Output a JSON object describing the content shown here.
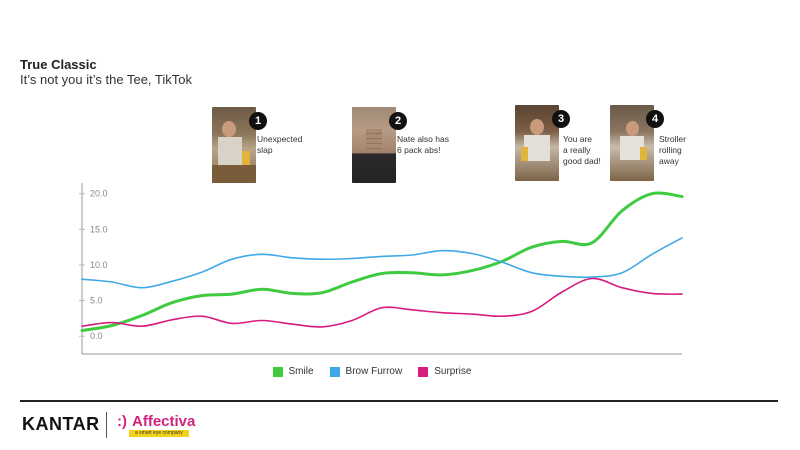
{
  "header": {
    "title": "True Classic",
    "subtitle": "It’s not you it’s the Tee, TikTok"
  },
  "moments": [
    {
      "number": "1",
      "caption_lines": [
        "Unexpected",
        "slap"
      ]
    },
    {
      "number": "2",
      "caption_lines": [
        "Nate also has",
        "6 pack abs!"
      ]
    },
    {
      "number": "3",
      "caption_lines": [
        "You are",
        "a really",
        "good dad!"
      ]
    },
    {
      "number": "4",
      "caption_lines": [
        "Stroller",
        "rolling",
        "away"
      ]
    }
  ],
  "footer": {
    "brand": "KANTAR",
    "partner_face": ":)",
    "partner": "Affectiva",
    "partner_tagline": "a smart eye company"
  },
  "chart_data": {
    "type": "line",
    "title": "",
    "xlabel": "",
    "ylabel": "",
    "ylim": [
      -2.5,
      21.5
    ],
    "yticks": [
      "0.0",
      "5.0",
      "10.0",
      "15.0",
      "20.0"
    ],
    "legend_position": "bottom",
    "grid": false,
    "x": [
      0,
      5,
      10,
      15,
      20,
      25,
      30,
      35,
      40,
      45,
      50,
      55,
      60,
      65,
      70,
      75,
      80,
      85,
      90,
      95,
      100
    ],
    "series": [
      {
        "name": "Smile",
        "color": "#3fcb3f",
        "values": [
          0.8,
          1.5,
          2.9,
          4.7,
          5.7,
          5.9,
          6.6,
          6.0,
          6.1,
          7.6,
          8.8,
          8.9,
          8.6,
          9.2,
          10.5,
          12.5,
          13.3,
          13.1,
          17.6,
          20.0,
          19.6
        ]
      },
      {
        "name": "Brow Furrow",
        "color": "#3fa9e8",
        "values": [
          8.0,
          7.6,
          6.8,
          7.7,
          9.0,
          10.8,
          11.5,
          11.0,
          10.8,
          10.9,
          11.2,
          11.4,
          12.0,
          11.6,
          10.4,
          8.9,
          8.4,
          8.3,
          8.9,
          11.5,
          13.8
        ]
      },
      {
        "name": "Surprise",
        "color": "#d81b7f",
        "values": [
          1.4,
          1.9,
          1.4,
          2.3,
          2.8,
          1.8,
          2.2,
          1.7,
          1.3,
          2.2,
          4.0,
          3.7,
          3.3,
          3.1,
          2.8,
          3.5,
          6.2,
          8.1,
          6.8,
          6.0,
          5.9
        ]
      }
    ]
  }
}
